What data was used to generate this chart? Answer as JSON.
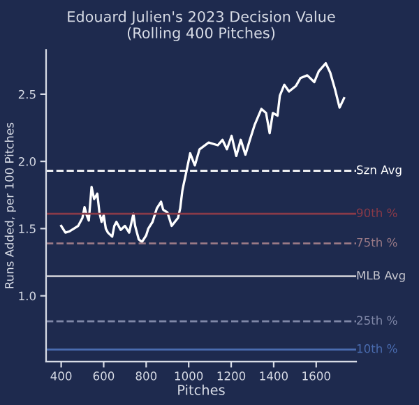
{
  "chart_data": {
    "type": "line",
    "title": "Edouard Julien's 2023 Decision Value\n(Rolling 400 Pitches)",
    "xlabel": "Pitches",
    "ylabel": "Runs Added, per 100 Pitches",
    "x": [
      400,
      420,
      440,
      460,
      480,
      500,
      510,
      520,
      530,
      543,
      555,
      570,
      580,
      590,
      600,
      610,
      620,
      640,
      650,
      660,
      680,
      700,
      720,
      740,
      748,
      765,
      780,
      800,
      810,
      830,
      850,
      870,
      880,
      900,
      920,
      940,
      950,
      960,
      970,
      975,
      986,
      1007,
      1029,
      1051,
      1094,
      1137,
      1159,
      1180,
      1202,
      1224,
      1245,
      1267,
      1288,
      1310,
      1342,
      1364,
      1381,
      1396,
      1418,
      1429,
      1450,
      1472,
      1504,
      1526,
      1558,
      1591,
      1612,
      1645,
      1666,
      1688,
      1710,
      1731
    ],
    "series": [
      {
        "color": "#ffffff",
        "values": [
          1.52,
          1.47,
          1.48,
          1.5,
          1.52,
          1.58,
          1.66,
          1.6,
          1.56,
          1.81,
          1.72,
          1.76,
          1.62,
          1.55,
          1.6,
          1.5,
          1.47,
          1.44,
          1.52,
          1.55,
          1.49,
          1.52,
          1.47,
          1.61,
          1.52,
          1.42,
          1.4,
          1.45,
          1.5,
          1.55,
          1.65,
          1.7,
          1.64,
          1.62,
          1.52,
          1.56,
          1.58,
          1.65,
          1.78,
          1.82,
          1.9,
          2.06,
          1.97,
          2.09,
          2.14,
          2.12,
          2.16,
          2.09,
          2.19,
          2.04,
          2.16,
          2.05,
          2.16,
          2.27,
          2.39,
          2.36,
          2.21,
          2.36,
          2.34,
          2.49,
          2.57,
          2.52,
          2.56,
          2.62,
          2.64,
          2.59,
          2.67,
          2.73,
          2.66,
          2.54,
          2.4,
          2.47
        ]
      }
    ],
    "xlim": [
      329,
      1788
    ],
    "ylim": [
      0.51,
      2.83
    ],
    "xticks": [
      400,
      600,
      800,
      1000,
      1200,
      1400,
      1600
    ],
    "yticks": [
      {
        "value": 1,
        "label": "1.0"
      },
      1.5,
      {
        "value": 2,
        "label": "2.0"
      },
      2.5
    ],
    "ref_lines": [
      {
        "axis": "y",
        "value": 1.93,
        "label": "Szn Avg",
        "color": "#ffffff",
        "line_style": "dashed"
      },
      {
        "axis": "y",
        "value": 1.61,
        "label": "90th %",
        "color": "#8a3a48",
        "line_style": "solid"
      },
      {
        "axis": "y",
        "value": 1.39,
        "label": "75th %",
        "color": "#9a7a86",
        "line_style": "dashed"
      },
      {
        "axis": "y",
        "value": 1.145,
        "label": "MLB Avg",
        "color": "#c8c8d0",
        "line_style": "solid"
      },
      {
        "axis": "y",
        "value": 0.81,
        "label": "25th %",
        "color": "#8088a8",
        "line_style": "dashed"
      },
      {
        "axis": "y",
        "value": 0.6,
        "label": "10th %",
        "color": "#4a6cb0",
        "line_style": "solid"
      }
    ],
    "grid": false,
    "legend": false
  }
}
